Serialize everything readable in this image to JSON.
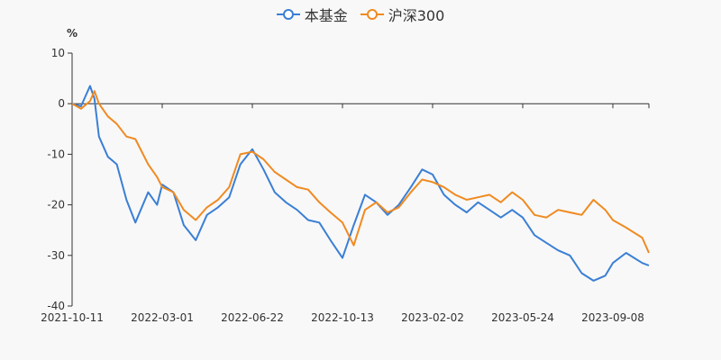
{
  "chart_data": {
    "type": "line",
    "unit": "%",
    "ylim": [
      -40,
      10
    ],
    "yticks": [
      10,
      0,
      -10,
      -20,
      -30,
      -40
    ],
    "x_ticks": [
      "2021-10-11",
      "2022-03-01",
      "2022-06-22",
      "2022-10-13",
      "2023-02-02",
      "2023-05-24",
      "2023-09-08"
    ],
    "series": [
      {
        "name": "本基金",
        "color": "#3a7fd5",
        "x": [
          "2021-10-11",
          "2021-10-25",
          "2021-11-08",
          "2021-11-15",
          "2021-11-22",
          "2021-12-06",
          "2021-12-20",
          "2022-01-04",
          "2022-01-18",
          "2022-02-07",
          "2022-02-21",
          "2022-03-01",
          "2022-03-15",
          "2022-03-28",
          "2022-04-12",
          "2022-04-26",
          "2022-05-10",
          "2022-05-24",
          "2022-06-07",
          "2022-06-22",
          "2022-07-06",
          "2022-07-20",
          "2022-08-03",
          "2022-08-17",
          "2022-08-31",
          "2022-09-14",
          "2022-09-28",
          "2022-10-13",
          "2022-10-27",
          "2022-11-10",
          "2022-11-24",
          "2022-12-08",
          "2022-12-22",
          "2023-01-06",
          "2023-01-20",
          "2023-02-02",
          "2023-02-16",
          "2023-03-02",
          "2023-03-16",
          "2023-03-30",
          "2023-04-13",
          "2023-04-27",
          "2023-05-11",
          "2023-05-24",
          "2023-06-07",
          "2023-06-21",
          "2023-07-05",
          "2023-07-19",
          "2023-08-02",
          "2023-08-16",
          "2023-08-30",
          "2023-09-08",
          "2023-09-22",
          "2023-10-09",
          "2023-10-16"
        ],
        "values": [
          0,
          -0.5,
          3.5,
          1.0,
          -6.5,
          -10.5,
          -12.0,
          -19.0,
          -23.5,
          -17.5,
          -20.0,
          -16.0,
          -17.5,
          -24.0,
          -27.0,
          -22.0,
          -20.5,
          -18.5,
          -12.0,
          -9.0,
          -13.0,
          -17.5,
          -19.5,
          -21.0,
          -23.0,
          -23.5,
          -27.0,
          -30.5,
          -24.0,
          -18.0,
          -19.5,
          -22.0,
          -20.0,
          -16.5,
          -13.0,
          -14.0,
          -18.0,
          -20.0,
          -21.5,
          -19.5,
          -21.0,
          -22.5,
          -21.0,
          -22.5,
          -26.0,
          -27.5,
          -29.0,
          -30.0,
          -33.5,
          -35.0,
          -34.0,
          -31.5,
          -29.5,
          -31.5,
          -32.0
        ]
      },
      {
        "name": "沪深300",
        "color": "#f08a21",
        "x": [
          "2021-10-11",
          "2021-10-25",
          "2021-11-08",
          "2021-11-15",
          "2021-11-22",
          "2021-12-06",
          "2021-12-20",
          "2022-01-04",
          "2022-01-18",
          "2022-02-07",
          "2022-02-21",
          "2022-03-01",
          "2022-03-15",
          "2022-03-28",
          "2022-04-12",
          "2022-04-26",
          "2022-05-10",
          "2022-05-24",
          "2022-06-07",
          "2022-06-22",
          "2022-07-06",
          "2022-07-20",
          "2022-08-03",
          "2022-08-17",
          "2022-08-31",
          "2022-09-14",
          "2022-09-28",
          "2022-10-13",
          "2022-10-27",
          "2022-11-10",
          "2022-11-24",
          "2022-12-08",
          "2022-12-22",
          "2023-01-06",
          "2023-01-20",
          "2023-02-02",
          "2023-02-16",
          "2023-03-02",
          "2023-03-16",
          "2023-03-30",
          "2023-04-13",
          "2023-04-27",
          "2023-05-11",
          "2023-05-24",
          "2023-06-07",
          "2023-06-21",
          "2023-07-05",
          "2023-07-19",
          "2023-08-02",
          "2023-08-16",
          "2023-08-30",
          "2023-09-08",
          "2023-09-22",
          "2023-10-09",
          "2023-10-16"
        ],
        "values": [
          0,
          -1.0,
          0.5,
          2.5,
          0.0,
          -2.5,
          -4.0,
          -6.5,
          -7.0,
          -12.0,
          -14.5,
          -16.5,
          -17.5,
          -21.0,
          -23.0,
          -20.5,
          -19.0,
          -16.5,
          -10.0,
          -9.5,
          -11.0,
          -13.5,
          -15.0,
          -16.5,
          -17.0,
          -19.5,
          -21.5,
          -23.5,
          -28.0,
          -21.0,
          -19.5,
          -21.5,
          -20.5,
          -17.5,
          -15.0,
          -15.5,
          -16.5,
          -18.0,
          -19.0,
          -18.5,
          -18.0,
          -19.5,
          -17.5,
          -19.0,
          -22.0,
          -22.5,
          -21.0,
          -21.5,
          -22.0,
          -19.0,
          -21.0,
          -23.0,
          -24.5,
          -26.5,
          -29.5
        ]
      }
    ]
  }
}
